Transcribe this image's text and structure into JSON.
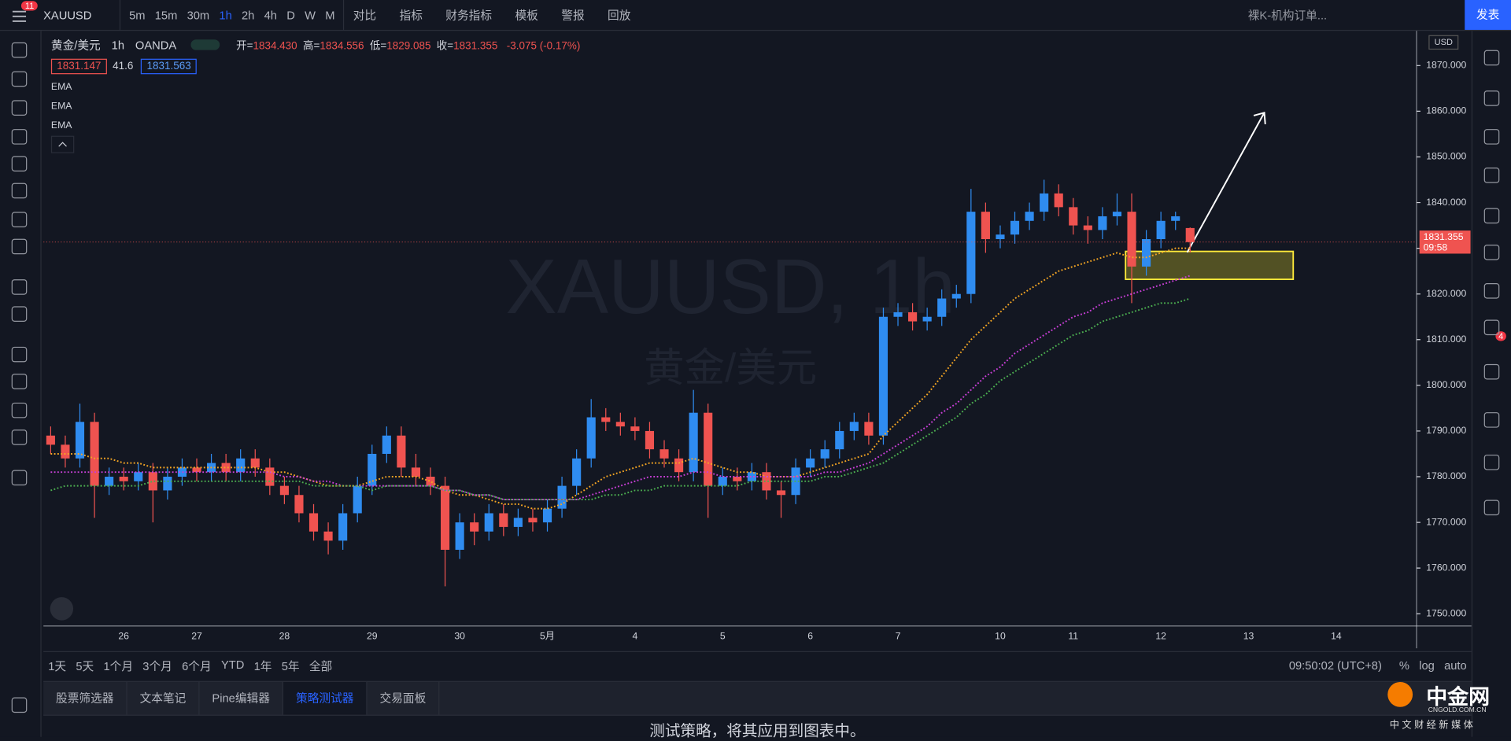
{
  "toolbar": {
    "badge": "11",
    "symbol": "XAUUSD",
    "intervals": [
      "5m",
      "15m",
      "30m",
      "1h",
      "2h",
      "4h",
      "D",
      "W",
      "M"
    ],
    "buttons": [
      "对比",
      "指标",
      "财务指标",
      "模板",
      "警报",
      "回放"
    ],
    "layout": "裸K-机构订单...",
    "publish": "发表"
  },
  "legend": {
    "name": "黄金/美元",
    "interval": "1h",
    "exchange": "OANDA",
    "ohlc": [
      {
        "label": "开=",
        "value": "1834.430"
      },
      {
        "label": "高=",
        "value": "1834.556"
      },
      {
        "label": "低=",
        "value": "1829.085"
      },
      {
        "label": "收=",
        "value": "1831.355"
      }
    ],
    "change": "-3.075 (-0.17%)",
    "bid": "1831.147",
    "spread": "41.6",
    "ask": "1831.563"
  },
  "chart": {
    "type": "candlestick",
    "currency": "USD",
    "watermark": "XAUUSD, 1h",
    "watermark_sub": "黄金/美元",
    "countdown": "09:58",
    "ylim": [
      1747.3,
      1877.6
    ],
    "yticks": [
      {
        "value": 1750,
        "label": "1750.000"
      },
      {
        "value": 1760,
        "label": "1760.000"
      },
      {
        "value": 1770,
        "label": "1770.000"
      },
      {
        "value": 1780,
        "label": "1780.000"
      },
      {
        "value": 1790,
        "label": "1790.000"
      },
      {
        "value": 1800,
        "label": "1800.000"
      },
      {
        "value": 1810,
        "label": "1810.000"
      },
      {
        "value": 1820,
        "label": "1820.000"
      },
      {
        "value": 1830,
        "label": "1830.000"
      },
      {
        "value": 1840,
        "label": "1840.000"
      },
      {
        "value": 1850,
        "label": "1850.000"
      },
      {
        "value": 1860,
        "label": "1860.000"
      },
      {
        "value": 1870,
        "label": "1870.000"
      }
    ],
    "categories": [
      null,
      null,
      null,
      null,
      null,
      "26",
      null,
      null,
      null,
      null,
      "27",
      null,
      null,
      null,
      null,
      null,
      "28",
      null,
      null,
      null,
      null,
      null,
      "29",
      null,
      null,
      null,
      null,
      null,
      "30",
      null,
      null,
      null,
      null,
      null,
      "5月",
      null,
      null,
      null,
      null,
      null,
      "4",
      null,
      null,
      null,
      null,
      null,
      "5",
      null,
      null,
      null,
      null,
      null,
      "6",
      null,
      null,
      null,
      null,
      null,
      "7",
      null,
      null,
      null,
      null,
      null,
      null,
      "10",
      null,
      null,
      null,
      null,
      "11",
      null,
      null,
      null,
      null,
      null,
      "12",
      null,
      null,
      null,
      null,
      null,
      "13",
      null,
      null,
      null,
      null,
      null,
      "14",
      null
    ],
    "up_color": "#2f8cf0",
    "down_color": "#ef5350",
    "candles": [
      [
        1789,
        1791,
        1785,
        1787
      ],
      [
        1787,
        1789,
        1782,
        1784
      ],
      [
        1784,
        1796,
        1782,
        1792
      ],
      [
        1792,
        1794,
        1771,
        1778
      ],
      [
        1778,
        1782,
        1776,
        1780
      ],
      [
        1780,
        1782,
        1777,
        1779
      ],
      [
        1779,
        1783,
        1777,
        1781
      ],
      [
        1781,
        1783,
        1770,
        1777
      ],
      [
        1777,
        1782,
        1775,
        1780
      ],
      [
        1780,
        1784,
        1778,
        1782
      ],
      [
        1782,
        1784,
        1779,
        1781
      ],
      [
        1781,
        1785,
        1779,
        1783
      ],
      [
        1783,
        1785,
        1779,
        1781
      ],
      [
        1781,
        1786,
        1779,
        1784
      ],
      [
        1784,
        1786,
        1780,
        1782
      ],
      [
        1782,
        1784,
        1776,
        1778
      ],
      [
        1778,
        1780,
        1774,
        1776
      ],
      [
        1776,
        1778,
        1770,
        1772
      ],
      [
        1772,
        1774,
        1766,
        1768
      ],
      [
        1768,
        1770,
        1763,
        1766
      ],
      [
        1766,
        1774,
        1764,
        1772
      ],
      [
        1772,
        1780,
        1770,
        1778
      ],
      [
        1778,
        1787,
        1776,
        1785
      ],
      [
        1785,
        1791,
        1783,
        1789
      ],
      [
        1789,
        1791,
        1780,
        1782
      ],
      [
        1782,
        1785,
        1778,
        1780
      ],
      [
        1780,
        1782,
        1776,
        1778
      ],
      [
        1778,
        1780,
        1756,
        1764
      ],
      [
        1764,
        1772,
        1762,
        1770
      ],
      [
        1770,
        1772,
        1765,
        1768
      ],
      [
        1768,
        1774,
        1766,
        1772
      ],
      [
        1772,
        1774,
        1767,
        1769
      ],
      [
        1769,
        1773,
        1767,
        1771
      ],
      [
        1771,
        1773,
        1768,
        1770
      ],
      [
        1770,
        1775,
        1768,
        1773
      ],
      [
        1773,
        1780,
        1771,
        1778
      ],
      [
        1778,
        1786,
        1776,
        1784
      ],
      [
        1784,
        1797,
        1782,
        1793
      ],
      [
        1793,
        1795,
        1790,
        1792
      ],
      [
        1792,
        1794,
        1789,
        1791
      ],
      [
        1791,
        1793,
        1788,
        1790
      ],
      [
        1790,
        1792,
        1784,
        1786
      ],
      [
        1786,
        1788,
        1782,
        1784
      ],
      [
        1784,
        1786,
        1779,
        1781
      ],
      [
        1781,
        1799,
        1779,
        1794
      ],
      [
        1794,
        1796,
        1771,
        1778
      ],
      [
        1778,
        1782,
        1776,
        1780
      ],
      [
        1780,
        1782,
        1777,
        1779
      ],
      [
        1779,
        1783,
        1777,
        1781
      ],
      [
        1781,
        1783,
        1775,
        1777
      ],
      [
        1777,
        1779,
        1771,
        1776
      ],
      [
        1776,
        1784,
        1774,
        1782
      ],
      [
        1782,
        1786,
        1780,
        1784
      ],
      [
        1784,
        1788,
        1782,
        1786
      ],
      [
        1786,
        1792,
        1784,
        1790
      ],
      [
        1790,
        1794,
        1788,
        1792
      ],
      [
        1792,
        1794,
        1787,
        1789
      ],
      [
        1789,
        1817,
        1787,
        1815
      ],
      [
        1815,
        1818,
        1813,
        1816
      ],
      [
        1816,
        1818,
        1812,
        1814
      ],
      [
        1814,
        1817,
        1812,
        1815
      ],
      [
        1815,
        1821,
        1813,
        1819
      ],
      [
        1819,
        1822,
        1817,
        1820
      ],
      [
        1820,
        1843,
        1818,
        1838
      ],
      [
        1838,
        1840,
        1829,
        1832
      ],
      [
        1832,
        1835,
        1830,
        1833
      ],
      [
        1833,
        1838,
        1831,
        1836
      ],
      [
        1836,
        1840,
        1834,
        1838
      ],
      [
        1838,
        1845,
        1836,
        1842
      ],
      [
        1842,
        1844,
        1837,
        1839
      ],
      [
        1839,
        1841,
        1833,
        1835
      ],
      [
        1835,
        1837,
        1831,
        1834
      ],
      [
        1834,
        1839,
        1832,
        1837
      ],
      [
        1837,
        1842,
        1835,
        1838
      ],
      [
        1838,
        1842,
        1818,
        1826
      ],
      [
        1826,
        1834,
        1824,
        1832
      ],
      [
        1832,
        1838,
        1830,
        1836
      ],
      [
        1836,
        1838,
        1834,
        1837
      ],
      [
        1834.43,
        1834.556,
        1829.085,
        1831.355
      ],
      null,
      null,
      null,
      null,
      null,
      null,
      null,
      null,
      null,
      null,
      null
    ],
    "series": [
      {
        "name": "EMA",
        "color": "#f5a623",
        "values": [
          1785,
          1785,
          1785,
          1784,
          1784,
          1783,
          1783,
          1782,
          1782,
          1782,
          1782,
          1782,
          1782,
          1782,
          1782,
          1781,
          1781,
          1780,
          1779,
          1778,
          1778,
          1778,
          1779,
          1780,
          1780,
          1780,
          1779,
          1777,
          1776,
          1776,
          1775,
          1774,
          1774,
          1773,
          1773,
          1774,
          1776,
          1778,
          1780,
          1781,
          1782,
          1783,
          1783,
          1783,
          1784,
          1783,
          1782,
          1781,
          1781,
          1780,
          1780,
          1780,
          1781,
          1782,
          1783,
          1784,
          1785,
          1789,
          1792,
          1795,
          1798,
          1802,
          1806,
          1810,
          1813,
          1816,
          1819,
          1821,
          1823,
          1825,
          1826,
          1827,
          1828,
          1829,
          1828,
          1828,
          1829,
          1830,
          1830,
          null,
          null,
          null,
          null,
          null,
          null,
          null,
          null,
          null,
          null,
          null
        ]
      },
      {
        "name": "EMA",
        "color": "#c83fd6",
        "values": [
          1781,
          1781,
          1781,
          1781,
          1781,
          1781,
          1781,
          1781,
          1781,
          1781,
          1781,
          1781,
          1781,
          1781,
          1781,
          1781,
          1780,
          1780,
          1779,
          1779,
          1778,
          1778,
          1778,
          1778,
          1778,
          1778,
          1778,
          1777,
          1777,
          1776,
          1776,
          1775,
          1775,
          1775,
          1775,
          1775,
          1775,
          1776,
          1777,
          1778,
          1779,
          1780,
          1780,
          1780,
          1781,
          1781,
          1780,
          1780,
          1780,
          1780,
          1780,
          1780,
          1780,
          1781,
          1781,
          1782,
          1783,
          1785,
          1787,
          1789,
          1791,
          1794,
          1796,
          1799,
          1802,
          1804,
          1807,
          1809,
          1811,
          1813,
          1815,
          1816,
          1818,
          1819,
          1820,
          1821,
          1822,
          1823,
          1824,
          null,
          null,
          null,
          null,
          null,
          null,
          null,
          null,
          null,
          null,
          null
        ]
      },
      {
        "name": "EMA",
        "color": "#4caf50",
        "values": [
          1777,
          1778,
          1778,
          1778,
          1778,
          1778,
          1778,
          1779,
          1779,
          1779,
          1779,
          1779,
          1779,
          1779,
          1779,
          1779,
          1779,
          1779,
          1778,
          1778,
          1778,
          1778,
          1777,
          1778,
          1778,
          1778,
          1778,
          1777,
          1777,
          1776,
          1776,
          1775,
          1775,
          1775,
          1775,
          1775,
          1775,
          1775,
          1776,
          1776,
          1777,
          1777,
          1778,
          1778,
          1778,
          1778,
          1778,
          1778,
          1779,
          1779,
          1779,
          1779,
          1779,
          1780,
          1780,
          1781,
          1782,
          1783,
          1785,
          1787,
          1789,
          1791,
          1793,
          1796,
          1798,
          1801,
          1803,
          1805,
          1807,
          1809,
          1811,
          1812,
          1814,
          1815,
          1816,
          1817,
          1818,
          1818,
          1819,
          null,
          null,
          null,
          null,
          null,
          null,
          null,
          null,
          null,
          null,
          null
        ]
      }
    ]
  },
  "bottom_bar": {
    "ranges": [
      "1天",
      "5天",
      "1个月",
      "3个月",
      "6个月",
      "YTD",
      "1年",
      "5年",
      "全部"
    ],
    "clock": "09:50:02 (UTC+8)",
    "scale_options": [
      "%",
      "log",
      "auto"
    ]
  },
  "panel": {
    "tabs": [
      "股票筛选器",
      "文本笔记",
      "Pine编辑器",
      "策略测试器",
      "交易面板"
    ],
    "active_tab": 3,
    "message": "测试策略，将其应用到图表中。"
  },
  "sidebar": {
    "badge": "4"
  },
  "logo": {
    "name": "中金网",
    "domain": "CNGOLD.COM.CN",
    "slogan": "中 文 财 经 新 媒 体"
  }
}
